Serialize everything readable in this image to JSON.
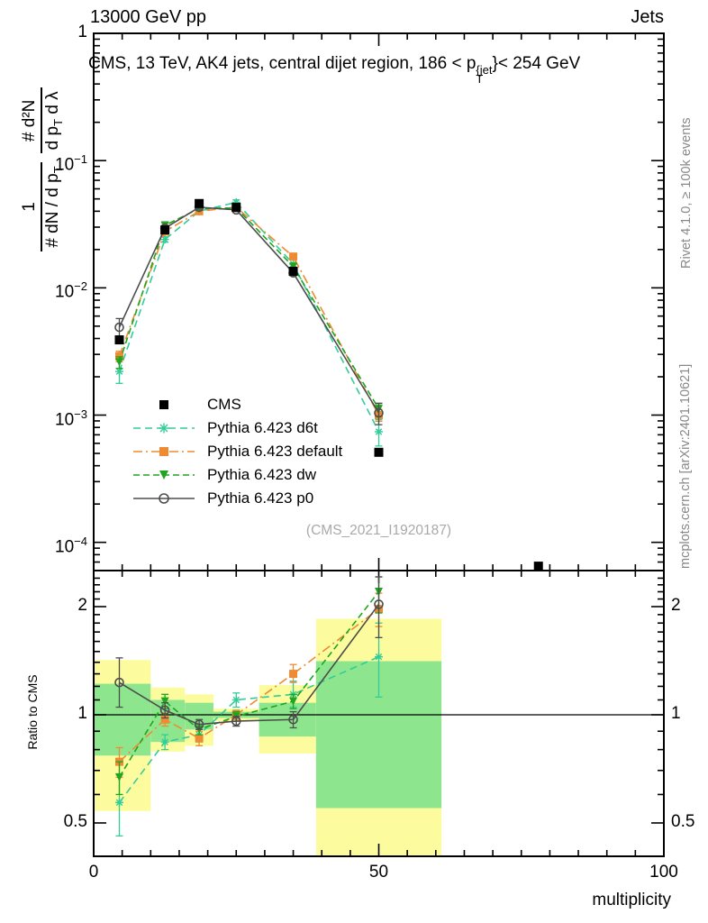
{
  "header": {
    "left": "13000 GeV pp",
    "right": "Jets"
  },
  "title": {
    "prefix": "CMS, 13 TeV, AK4 jets, central dijet region, 186 < p",
    "sup": "{jet",
    "sub": "T",
    "suffix": "}< 254 GeV"
  },
  "ylabel": {
    "frac1_num": "1",
    "frac1_den": "# dN / d p_T",
    "frac2_num": "# d²N",
    "frac2_den": "d p_T d λ"
  },
  "ratio_ylabel": "Ratio to CMS",
  "xlabel": "multiplicity",
  "watermark": "(CMS_2021_I1920187)",
  "side_notes": {
    "top": "Rivet 4.1.0, ≥ 100k events",
    "bottom": "mcplots.cern.ch [arXiv:2401.10621]"
  },
  "legend": {
    "items": [
      {
        "label": "CMS",
        "marker": "square-filled",
        "color": "#000000",
        "line": "none"
      },
      {
        "label": "Pythia 6.423 d6t",
        "marker": "star",
        "color": "#33cc99",
        "line": "dashed"
      },
      {
        "label": "Pythia 6.423 default",
        "marker": "square",
        "color": "#ef8a33",
        "line": "dashdot"
      },
      {
        "label": "Pythia 6.423 dw",
        "marker": "triangle-down",
        "color": "#1fa51f",
        "line": "dashed2"
      },
      {
        "label": "Pythia 6.423 p0",
        "marker": "circle-open",
        "color": "#4d4d4d",
        "line": "solid"
      }
    ]
  },
  "chart_data": {
    "type": "line",
    "title": "CMS, 13 TeV, AK4 jets, central dijet region, 186 < pT^jet < 254 GeV",
    "xlabel": "multiplicity",
    "ylabel": "1/(# dN/dpT) × # d²N/(dpT dλ)",
    "x_range": [
      0,
      100
    ],
    "main_ylog_range": [
      6e-05,
      1
    ],
    "ratio_ylog_range": [
      0.4,
      2.5
    ],
    "x_major_ticks": [
      0,
      50,
      100
    ],
    "x_minor_step": 5,
    "main_yticks": [
      {
        "v": 1,
        "label": "1"
      },
      {
        "v": 0.1,
        "label": "10^−1"
      },
      {
        "v": 0.01,
        "label": "10^−2"
      },
      {
        "v": 0.001,
        "label": "10^−3"
      },
      {
        "v": 0.0001,
        "label": "10^−4"
      }
    ],
    "ratio_yticks": [
      {
        "v": 2,
        "label": "2"
      },
      {
        "v": 1,
        "label": "1"
      },
      {
        "v": 0.5,
        "label": "0.5"
      }
    ],
    "x": [
      4.5,
      12.5,
      18.5,
      25,
      35,
      50
    ],
    "series": [
      {
        "name": "Pythia 6.423 d6t",
        "color": "#33cc99",
        "marker": "star",
        "line": "dashed",
        "values": [
          0.0022,
          0.024,
          0.04,
          0.047,
          0.0154,
          0.00074
        ],
        "ratio": [
          0.57,
          0.84,
          0.88,
          1.1,
          1.14,
          1.45
        ],
        "ratio_err": [
          [
            0.46,
            0.68
          ],
          [
            0.8,
            0.88
          ],
          [
            0.84,
            0.92
          ],
          [
            1.05,
            1.15
          ],
          [
            1.05,
            1.24
          ],
          [
            1.12,
            1.8
          ]
        ]
      },
      {
        "name": "Pythia 6.423 default",
        "color": "#ef8a33",
        "marker": "square",
        "line": "dashdot",
        "values": [
          0.0029,
          0.0277,
          0.04,
          0.043,
          0.0176,
          0.001
        ],
        "ratio": [
          0.74,
          0.97,
          0.86,
          1.0,
          1.3,
          1.97
        ],
        "ratio_err": [
          [
            0.67,
            0.81
          ],
          [
            0.93,
            1.01
          ],
          [
            0.82,
            0.9
          ],
          [
            0.97,
            1.03
          ],
          [
            1.23,
            1.38
          ],
          [
            1.76,
            2.18
          ]
        ]
      },
      {
        "name": "Pythia 6.423 dw",
        "color": "#1fa51f",
        "marker": "triangle-down",
        "line": "dashed2",
        "values": [
          0.0026,
          0.031,
          0.042,
          0.0425,
          0.0147,
          0.00112
        ],
        "ratio": [
          0.67,
          1.09,
          0.91,
          0.99,
          1.09,
          2.2
        ],
        "ratio_err": [
          [
            0.6,
            0.74
          ],
          [
            1.04,
            1.14
          ],
          [
            0.88,
            0.94
          ],
          [
            0.96,
            1.02
          ],
          [
            1.04,
            1.14
          ],
          [
            1.92,
            2.42
          ]
        ]
      },
      {
        "name": "Pythia 6.423 p0",
        "color": "#4d4d4d",
        "marker": "circle-open",
        "line": "solid",
        "values": [
          0.0049,
          0.0294,
          0.043,
          0.041,
          0.0131,
          0.00104
        ],
        "ratio": [
          1.23,
          1.03,
          0.94,
          0.96,
          0.97,
          2.03
        ],
        "ratio_err": [
          [
            1.05,
            1.44
          ],
          [
            0.98,
            1.08
          ],
          [
            0.91,
            0.97
          ],
          [
            0.93,
            0.99
          ],
          [
            0.92,
            1.02
          ],
          [
            1.64,
            2.42
          ]
        ]
      },
      {
        "name": "CMS",
        "color": "#000000",
        "marker": "square-filled",
        "line": "none",
        "is_data": true,
        "values": [
          0.0039,
          0.0285,
          0.046,
          0.043,
          0.0135,
          0.00051
        ],
        "extra_point": {
          "x": 78,
          "y": 6.5e-05
        }
      }
    ],
    "ratio_bands": [
      {
        "x0": 0,
        "x1": 10,
        "yellow": [
          0.54,
          1.42
        ],
        "green": [
          0.77,
          1.22
        ]
      },
      {
        "x0": 10,
        "x1": 16,
        "yellow": [
          0.79,
          1.19
        ],
        "green": [
          0.84,
          1.1
        ]
      },
      {
        "x0": 16,
        "x1": 21,
        "yellow": [
          0.82,
          1.14
        ],
        "green": [
          0.91,
          1.08
        ]
      },
      {
        "x0": 21,
        "x1": 29,
        "yellow": [
          0.96,
          1.04
        ],
        "green": [
          0.98,
          1.02
        ]
      },
      {
        "x0": 29,
        "x1": 39,
        "yellow": [
          0.78,
          1.21
        ],
        "green": [
          0.87,
          1.08
        ]
      },
      {
        "x0": 39,
        "x1": 61,
        "yellow": [
          0.38,
          1.85
        ],
        "green": [
          0.55,
          1.41
        ]
      }
    ],
    "band_colors": {
      "yellow": "#fcfc9e",
      "green": "#8de68d"
    },
    "legend_position": "left-middle",
    "grid": false
  }
}
